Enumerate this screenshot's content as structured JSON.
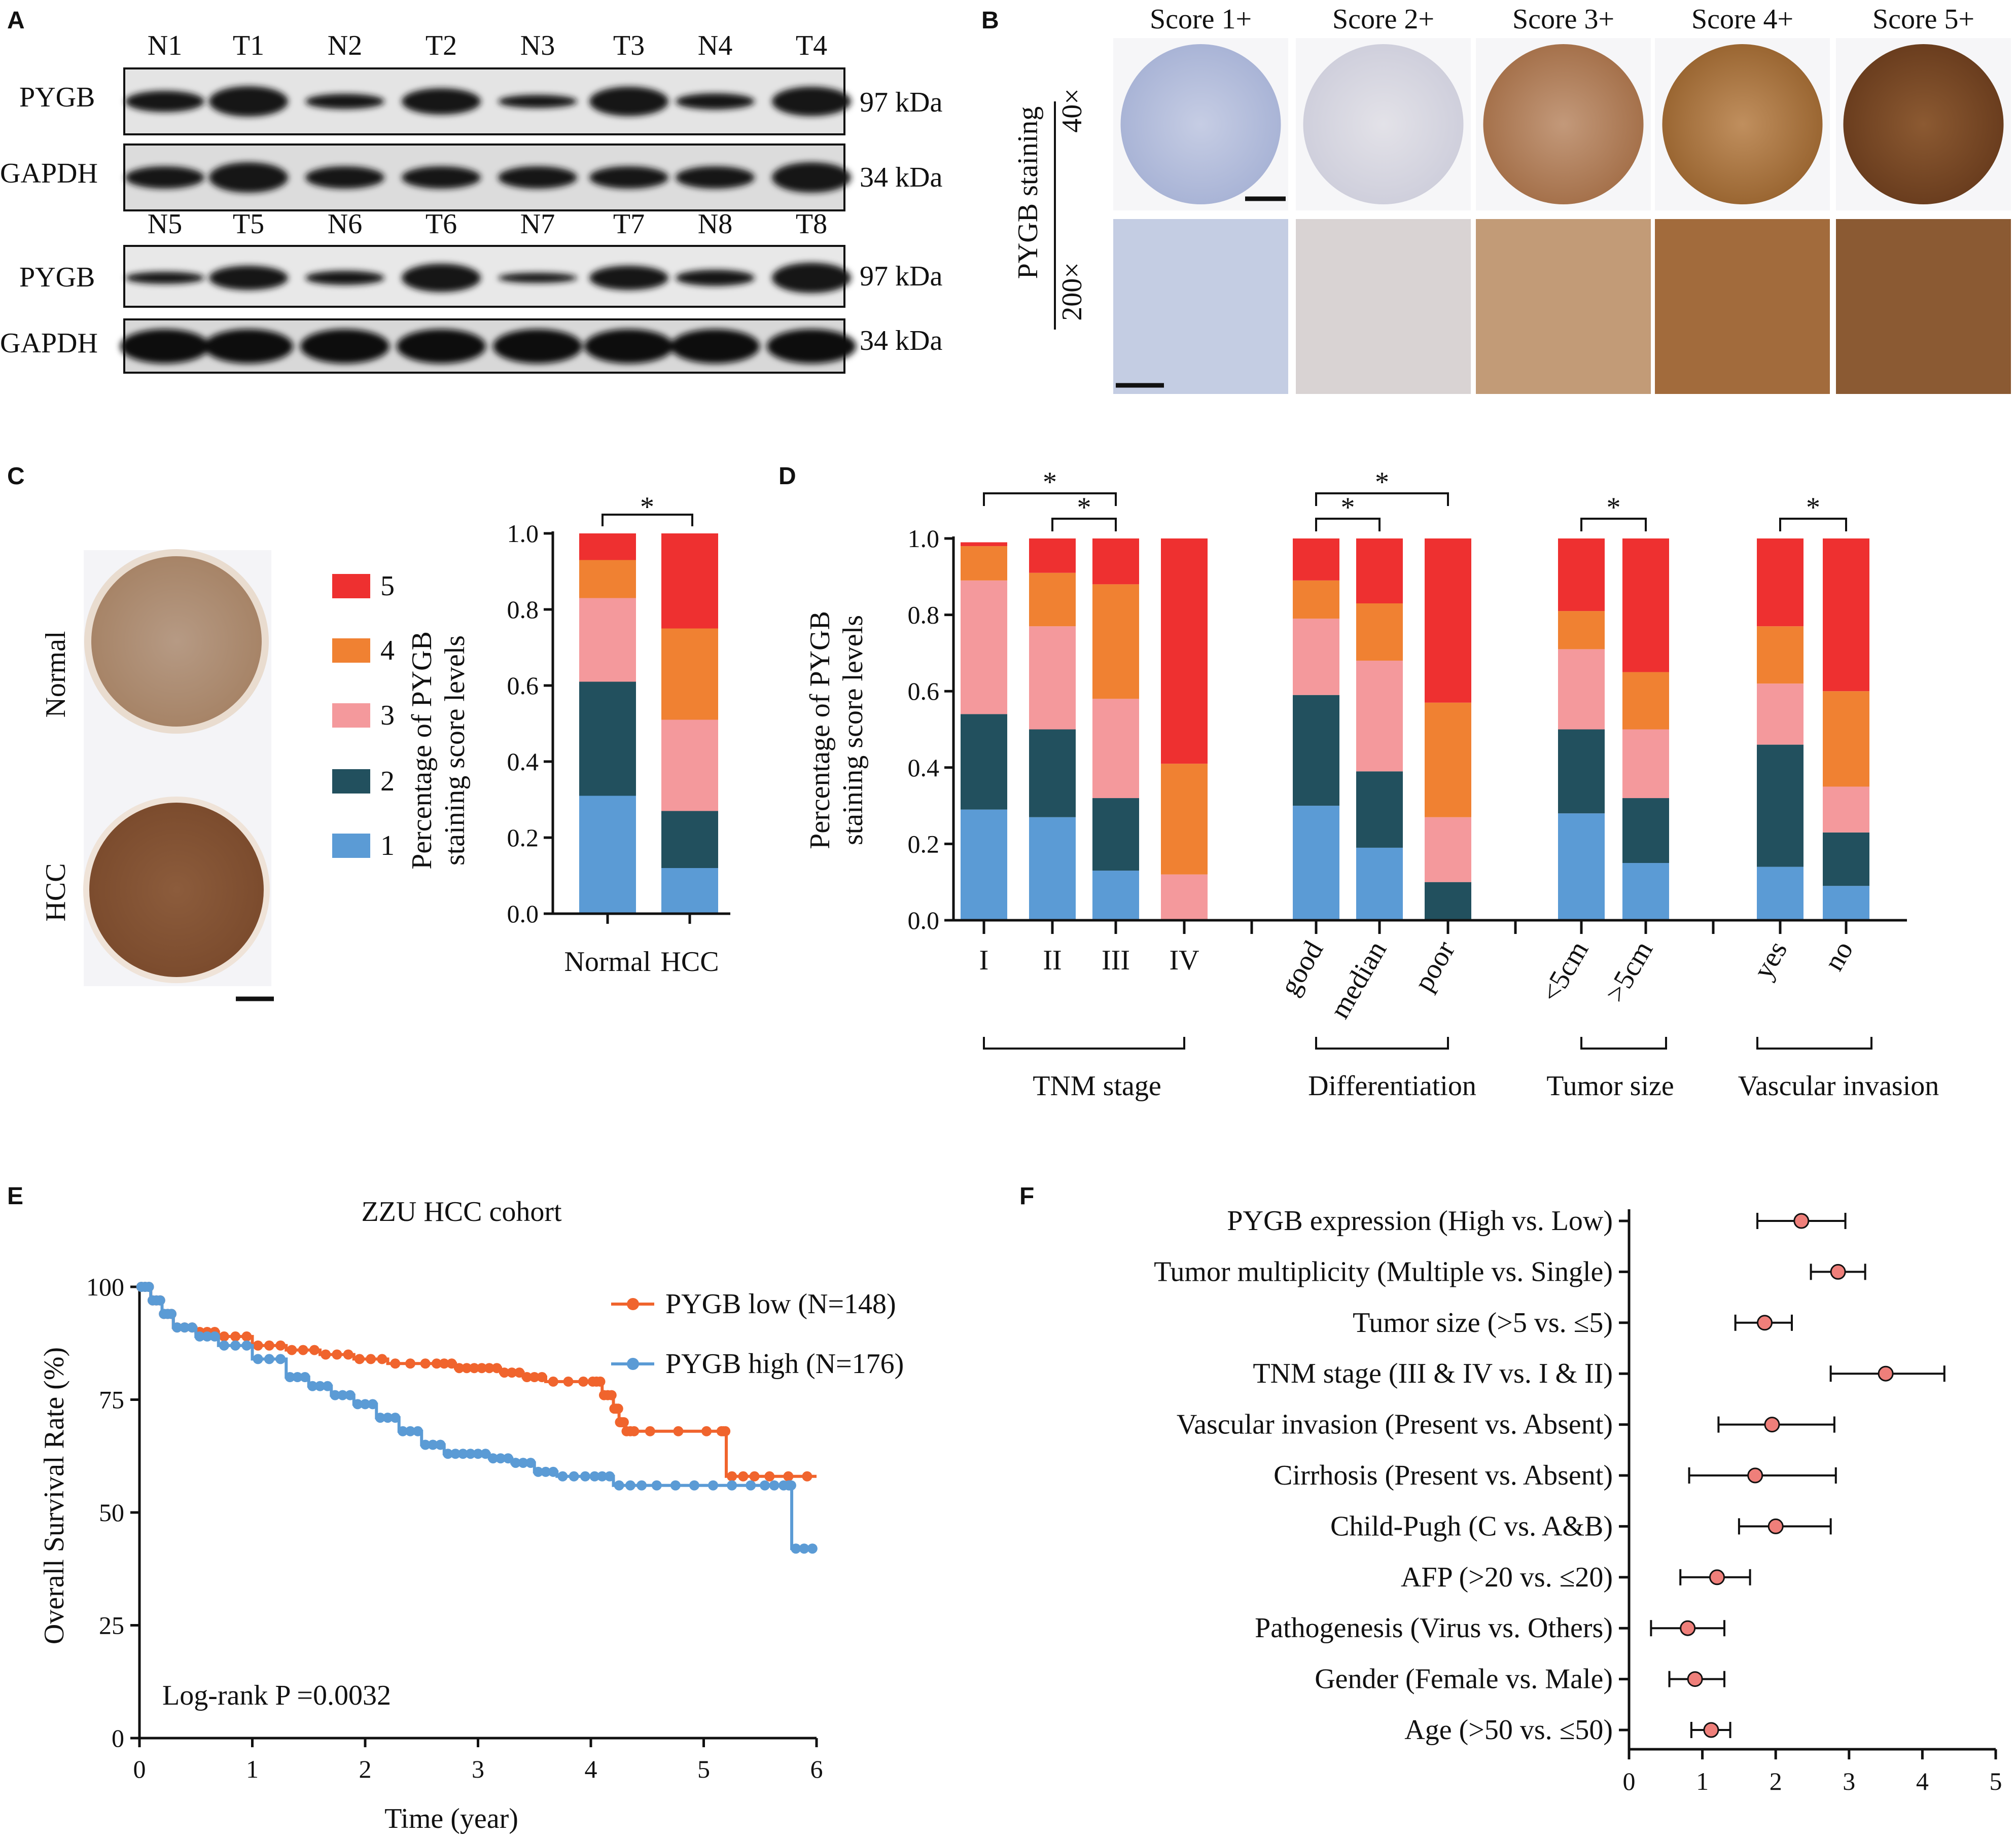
{
  "panels": {
    "a": "A",
    "b": "B",
    "c": "C",
    "d": "D",
    "e": "E",
    "f": "F"
  },
  "colors": {
    "s1": "#5b9bd5",
    "s2": "#22505e",
    "s3": "#f4999c",
    "s4": "#f08132",
    "s5": "#ee3030",
    "low": "#f0642d",
    "high": "#5b9bd5",
    "dot": "#ef7f7a"
  },
  "blotA": {
    "top_lanes": [
      "N1",
      "T1",
      "N2",
      "T2",
      "N3",
      "T3",
      "N4",
      "T4"
    ],
    "bottom_lanes": [
      "N5",
      "T5",
      "N6",
      "T6",
      "N7",
      "T7",
      "N8",
      "T8"
    ],
    "pygb": "PYGB",
    "gapdh": "GAPDH",
    "kda97": "97 kDa",
    "kda34": "34 kDa"
  },
  "panelB": {
    "scores": [
      "Score 1+",
      "Score 2+",
      "Score 3+",
      "Score 4+",
      "Score 5+"
    ],
    "staining_label": "PYGB staining",
    "mag40": "40×",
    "mag200": "200×"
  },
  "panelC": {
    "normal": "Normal",
    "hcc": "HCC",
    "legend": [
      "5",
      "4",
      "3",
      "2",
      "1"
    ]
  },
  "chart_data": [
    {
      "id": "C",
      "type": "bar",
      "stacked": true,
      "ylabel_line1": "Percentage of  PYGB",
      "ylabel_line2": "staining score levels",
      "ylim": [
        0,
        1.0
      ],
      "yticks": [
        "0.0",
        "0.2",
        "0.4",
        "0.6",
        "0.8",
        "1.0"
      ],
      "categories": [
        "Normal",
        "HCC"
      ],
      "series": [
        {
          "name": "1",
          "values": [
            0.31,
            0.12
          ]
        },
        {
          "name": "2",
          "values": [
            0.3,
            0.15
          ]
        },
        {
          "name": "3",
          "values": [
            0.22,
            0.24
          ]
        },
        {
          "name": "4",
          "values": [
            0.1,
            0.24
          ]
        },
        {
          "name": "5",
          "values": [
            0.07,
            0.25
          ]
        }
      ],
      "significance": [
        {
          "from": 0,
          "to": 1,
          "label": "*"
        }
      ]
    },
    {
      "id": "D",
      "type": "bar",
      "stacked": true,
      "ylabel_line1": "Percentage of  PYGB",
      "ylabel_line2": "staining score levels",
      "ylim": [
        0,
        1.0
      ],
      "yticks": [
        "0.0",
        "0.2",
        "0.4",
        "0.6",
        "0.8",
        "1.0"
      ],
      "categories": [
        "I",
        "II",
        "III",
        "IV",
        "good",
        "median",
        "poor",
        "<5cm",
        ">5cm",
        "yes",
        "no"
      ],
      "groups": [
        {
          "label": "TNM stage",
          "indices": [
            0,
            1,
            2,
            3
          ]
        },
        {
          "label": "Differentiation",
          "indices": [
            4,
            5,
            6
          ]
        },
        {
          "label": "Tumor size",
          "indices": [
            7,
            8
          ]
        },
        {
          "label": "Vascular invasion",
          "indices": [
            9,
            10
          ]
        }
      ],
      "series": [
        {
          "name": "1",
          "values": [
            0.29,
            0.27,
            0.13,
            0.0,
            0.3,
            0.19,
            0.0,
            0.28,
            0.15,
            0.14,
            0.09
          ]
        },
        {
          "name": "2",
          "values": [
            0.25,
            0.23,
            0.19,
            0.0,
            0.29,
            0.2,
            0.1,
            0.22,
            0.17,
            0.32,
            0.14
          ]
        },
        {
          "name": "3",
          "values": [
            0.35,
            0.27,
            0.26,
            0.12,
            0.2,
            0.29,
            0.17,
            0.21,
            0.18,
            0.16,
            0.12
          ]
        },
        {
          "name": "4",
          "values": [
            0.09,
            0.14,
            0.3,
            0.29,
            0.1,
            0.15,
            0.3,
            0.1,
            0.15,
            0.15,
            0.25
          ]
        },
        {
          "name": "5",
          "values": [
            0.01,
            0.09,
            0.12,
            0.59,
            0.11,
            0.17,
            0.43,
            0.19,
            0.35,
            0.23,
            0.4
          ]
        }
      ],
      "significance": [
        {
          "from": 0,
          "to": 2,
          "label": "*"
        },
        {
          "from": 1,
          "to": 2,
          "label": "*"
        },
        {
          "from": 4,
          "to": 6,
          "label": "*"
        },
        {
          "from": 4,
          "to": 5,
          "label": "*"
        },
        {
          "from": 7,
          "to": 8,
          "label": "*"
        },
        {
          "from": 9,
          "to": 10,
          "label": "*"
        }
      ]
    },
    {
      "id": "E",
      "type": "line",
      "title": "ZZU HCC cohort",
      "xlabel": "Time (year)",
      "ylabel": "Overall Survival Rate (%)",
      "xlim": [
        0,
        6
      ],
      "ylim": [
        0,
        100
      ],
      "xticks": [
        "0",
        "1",
        "2",
        "3",
        "4",
        "5",
        "6"
      ],
      "yticks": [
        "0",
        "25",
        "50",
        "75",
        "100"
      ],
      "annotation": "Log-rank P =0.0032",
      "series": [
        {
          "name": "PYGB low (N=148)",
          "x": [
            0,
            0.1,
            0.2,
            0.3,
            0.5,
            0.7,
            1.0,
            1.3,
            1.6,
            1.9,
            2.2,
            2.6,
            2.8,
            3.0,
            3.2,
            3.4,
            3.6,
            4.0,
            4.1,
            4.2,
            4.25,
            4.3,
            4.4,
            5.15,
            5.2,
            5.5,
            6.0
          ],
          "y": [
            100,
            97,
            94,
            91,
            90,
            89,
            87,
            86,
            85,
            84,
            83,
            83,
            82,
            82,
            81,
            80,
            79,
            79,
            76,
            73,
            70,
            68,
            68,
            68,
            58,
            58,
            58
          ]
        },
        {
          "name": "PYGB high (N=176)",
          "x": [
            0,
            0.1,
            0.2,
            0.3,
            0.5,
            0.7,
            1.0,
            1.3,
            1.5,
            1.7,
            1.9,
            2.1,
            2.3,
            2.5,
            2.7,
            2.9,
            3.1,
            3.3,
            3.5,
            3.7,
            4.0,
            4.2,
            4.5,
            5.0,
            5.5,
            5.75,
            5.78,
            6.0
          ],
          "y": [
            100,
            97,
            94,
            91,
            89,
            87,
            84,
            80,
            78,
            76,
            74,
            71,
            68,
            65,
            63,
            63,
            62,
            61,
            59,
            58,
            58,
            56,
            56,
            56,
            56,
            56,
            42,
            42
          ]
        }
      ]
    },
    {
      "id": "F",
      "type": "scatter",
      "subtype": "forest",
      "xlim": [
        0,
        5
      ],
      "xticks": [
        "0",
        "1",
        "2",
        "3",
        "4",
        "5"
      ],
      "rows": [
        {
          "label": "PYGB expression (High vs. Low)",
          "hr": 2.35,
          "lo": 1.75,
          "hi": 2.95
        },
        {
          "label": "Tumor multiplicity (Multiple vs. Single)",
          "hr": 2.85,
          "lo": 2.48,
          "hi": 3.22
        },
        {
          "label": "Tumor size (>5 vs. ≤5)",
          "hr": 1.85,
          "lo": 1.45,
          "hi": 2.22
        },
        {
          "label": "TNM stage (III & IV vs. I & II)",
          "hr": 3.5,
          "lo": 2.75,
          "hi": 4.3
        },
        {
          "label": "Vascular invasion (Present vs. Absent)",
          "hr": 1.95,
          "lo": 1.22,
          "hi": 2.8
        },
        {
          "label": "Cirrhosis (Present vs. Absent)",
          "hr": 1.72,
          "lo": 0.82,
          "hi": 2.82
        },
        {
          "label": "Child-Pugh (C vs. A&B)",
          "hr": 2.0,
          "lo": 1.5,
          "hi": 2.75
        },
        {
          "label": "AFP (>20 vs. ≤20)",
          "hr": 1.2,
          "lo": 0.7,
          "hi": 1.65
        },
        {
          "label": "Pathogenesis (Virus vs. Others)",
          "hr": 0.8,
          "lo": 0.3,
          "hi": 1.3
        },
        {
          "label": "Gender (Female vs. Male)",
          "hr": 0.9,
          "lo": 0.55,
          "hi": 1.3
        },
        {
          "label": "Age (>50 vs. ≤50)",
          "hr": 1.12,
          "lo": 0.85,
          "hi": 1.38
        }
      ]
    }
  ]
}
